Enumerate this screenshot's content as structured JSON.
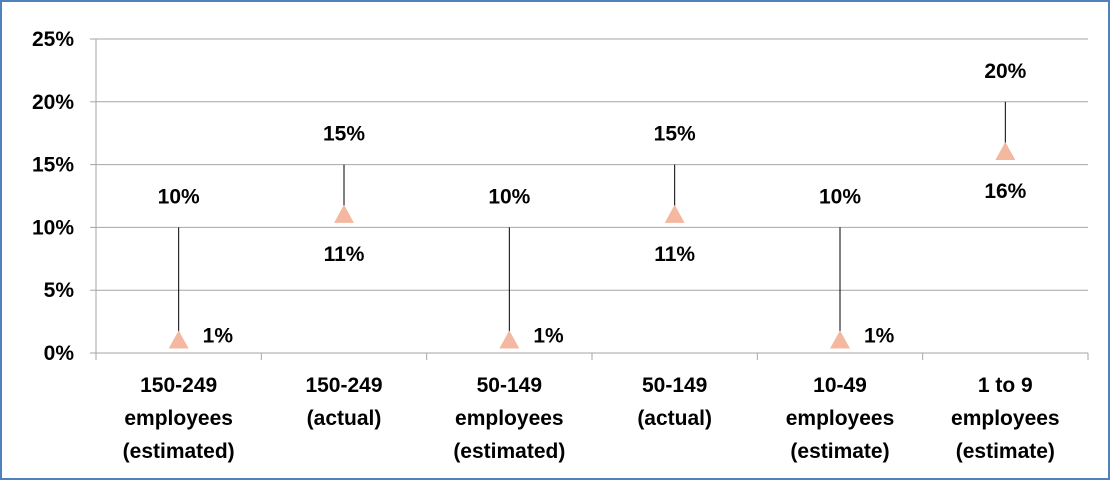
{
  "chart_data": {
    "type": "scatter",
    "title": "",
    "xlabel": "",
    "ylabel": "",
    "ylim": [
      0,
      25
    ],
    "y_ticks": [
      0,
      5,
      10,
      15,
      20,
      25
    ],
    "y_tick_labels": [
      "0%",
      "5%",
      "10%",
      "15%",
      "20%",
      "25%"
    ],
    "grid": true,
    "legend": "none",
    "categories": [
      [
        "150-249",
        "employees",
        "(estimated)"
      ],
      [
        "150-249",
        "(actual)"
      ],
      [
        "50-149",
        "employees",
        "(estimated)"
      ],
      [
        "50-149",
        "(actual)"
      ],
      [
        "10-49",
        "employees",
        "(estimate)"
      ],
      [
        "1 to 9",
        "employees",
        "(estimate)"
      ]
    ],
    "series": [
      {
        "marker": "triangle",
        "values": [
          1,
          11,
          1,
          11,
          1,
          16
        ],
        "labels": [
          "1%",
          "11%",
          "1%",
          "11%",
          "1%",
          "16%"
        ]
      },
      {
        "marker": "none",
        "values": [
          10,
          15,
          10,
          15,
          10,
          20
        ],
        "labels": [
          "10%",
          "15%",
          "10%",
          "15%",
          "10%",
          "20%"
        ]
      }
    ],
    "colors": {
      "marker": "#f4b8a0",
      "gridline": "#a6a6a6",
      "dropline": "#000000",
      "frame": "#4f81bd"
    }
  }
}
